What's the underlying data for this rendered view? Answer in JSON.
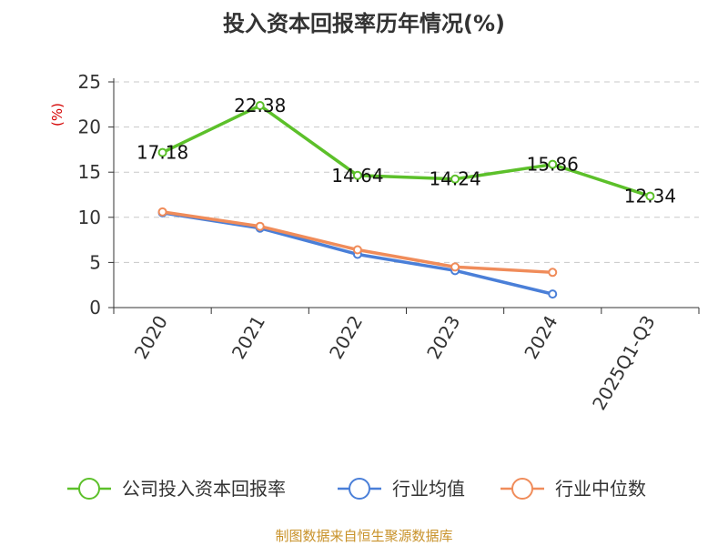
{
  "chart_data": {
    "type": "line",
    "title": "投入资本回报率历年情况(%)",
    "ylabel": "(%)",
    "xlabel": "",
    "categories": [
      "2020",
      "2021",
      "2022",
      "2023",
      "2024",
      "2025Q1-Q3"
    ],
    "ylim": [
      0,
      25
    ],
    "yticks": [
      0,
      5,
      10,
      15,
      20,
      25
    ],
    "grid": true,
    "legend_position": "bottom",
    "series": [
      {
        "name": "公司投入资本回报率",
        "color": "#5cc02a",
        "values": [
          17.18,
          22.38,
          14.64,
          14.24,
          15.86,
          12.34
        ],
        "labels": [
          "17.18",
          "22.38",
          "14.64",
          "14.24",
          "15.86",
          "12.34"
        ],
        "show_labels": true
      },
      {
        "name": "行业均值",
        "color": "#4a7fd8",
        "values": [
          10.5,
          8.8,
          5.9,
          4.1,
          1.5,
          null
        ],
        "show_labels": false
      },
      {
        "name": "行业中位数",
        "color": "#f08c5a",
        "values": [
          10.6,
          9.0,
          6.4,
          4.5,
          3.9,
          null
        ],
        "show_labels": false
      }
    ],
    "source": "制图数据来自恒生聚源数据库"
  }
}
